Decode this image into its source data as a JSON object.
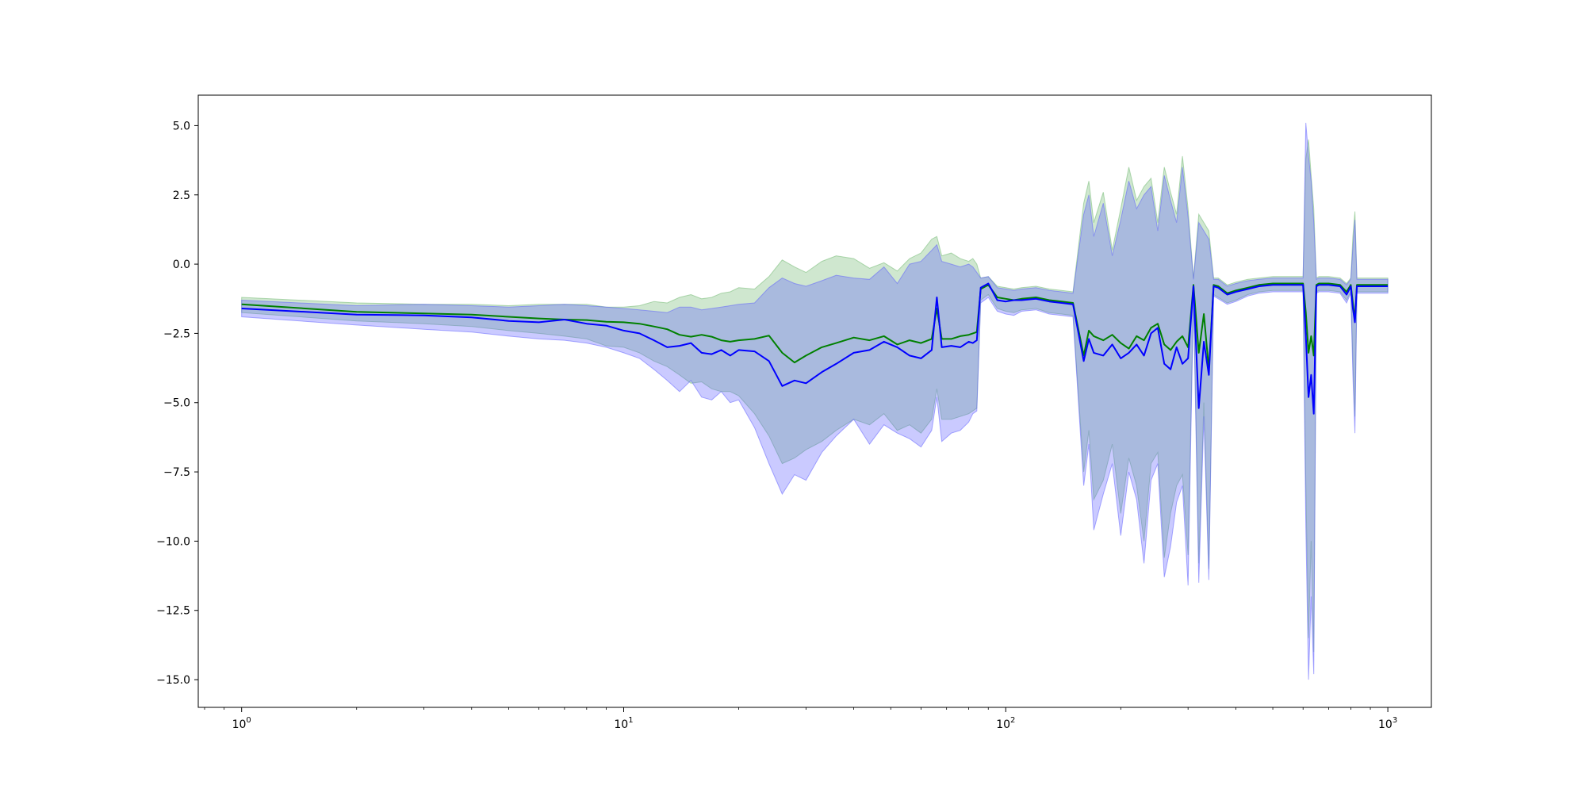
{
  "chart_data": {
    "type": "line",
    "title": "",
    "xlabel": "",
    "ylabel": "",
    "x_scale": "log",
    "xlim": [
      0.77,
      1300
    ],
    "ylim": [
      -16.0,
      6.1
    ],
    "grid": false,
    "legend": "none",
    "x_ticks": [
      {
        "base": "10",
        "exp": "0",
        "value": 1
      },
      {
        "base": "10",
        "exp": "1",
        "value": 10
      },
      {
        "base": "10",
        "exp": "2",
        "value": 100
      },
      {
        "base": "10",
        "exp": "3",
        "value": 1000
      }
    ],
    "y_ticks": [
      {
        "label": "5.0",
        "value": 5.0
      },
      {
        "label": "2.5",
        "value": 2.5
      },
      {
        "label": "0.0",
        "value": 0.0
      },
      {
        "label": "−2.5",
        "value": -2.5
      },
      {
        "label": "−5.0",
        "value": -5.0
      },
      {
        "label": "−7.5",
        "value": -7.5
      },
      {
        "label": "−10.0",
        "value": -10.0
      },
      {
        "label": "−12.5",
        "value": -12.5
      },
      {
        "label": "−15.0",
        "value": -15.0
      }
    ],
    "series": [
      {
        "color": "#008000",
        "band_color": "#6ab56a",
        "x": [
          1,
          2,
          3,
          4,
          5,
          6,
          7,
          8,
          9,
          10,
          11,
          12,
          13,
          14,
          15,
          16,
          17,
          18,
          19,
          20,
          22,
          24,
          26,
          28,
          30,
          33,
          36,
          40,
          44,
          48,
          52,
          56,
          60,
          64,
          66,
          68,
          72,
          76,
          80,
          82,
          84,
          86,
          90,
          95,
          100,
          105,
          110,
          120,
          130,
          140,
          150,
          160,
          165,
          170,
          180,
          190,
          200,
          210,
          220,
          230,
          240,
          250,
          260,
          270,
          280,
          290,
          300,
          310,
          320,
          330,
          340,
          350,
          360,
          380,
          400,
          430,
          460,
          500,
          550,
          600,
          610,
          620,
          630,
          640,
          650,
          660,
          700,
          750,
          780,
          800,
          810,
          820,
          830,
          900,
          1000
        ],
        "y": [
          -1.45,
          -1.72,
          -1.78,
          -1.82,
          -1.9,
          -1.96,
          -2.0,
          -2.02,
          -2.08,
          -2.1,
          -2.15,
          -2.25,
          -2.35,
          -2.55,
          -2.62,
          -2.55,
          -2.62,
          -2.75,
          -2.8,
          -2.75,
          -2.7,
          -2.58,
          -3.2,
          -3.55,
          -3.3,
          -3.0,
          -2.85,
          -2.65,
          -2.75,
          -2.6,
          -2.9,
          -2.75,
          -2.85,
          -2.7,
          -1.6,
          -2.7,
          -2.7,
          -2.6,
          -2.55,
          -2.5,
          -2.45,
          -0.9,
          -0.75,
          -1.2,
          -1.25,
          -1.3,
          -1.25,
          -1.2,
          -1.3,
          -1.35,
          -1.4,
          -3.3,
          -2.4,
          -2.6,
          -2.75,
          -2.55,
          -2.85,
          -3.05,
          -2.6,
          -2.75,
          -2.3,
          -2.15,
          -2.9,
          -3.1,
          -2.8,
          -2.6,
          -3.0,
          -0.75,
          -3.2,
          -1.8,
          -3.8,
          -0.75,
          -0.8,
          -1.05,
          -0.95,
          -0.85,
          -0.75,
          -0.7,
          -0.7,
          -0.7,
          -1.75,
          -3.2,
          -2.6,
          -3.3,
          -0.75,
          -0.7,
          -0.7,
          -0.75,
          -1.0,
          -0.75,
          -1.4,
          -2.0,
          -0.75,
          -0.75,
          -0.75
        ],
        "lower": [
          -1.75,
          -2.05,
          -2.15,
          -2.25,
          -2.4,
          -2.5,
          -2.6,
          -2.7,
          -2.95,
          -3.0,
          -3.2,
          -3.5,
          -3.7,
          -4.0,
          -4.3,
          -4.25,
          -4.5,
          -4.6,
          -4.6,
          -4.75,
          -5.4,
          -6.2,
          -7.2,
          -7.0,
          -6.7,
          -6.4,
          -6.0,
          -5.6,
          -5.8,
          -5.4,
          -6.0,
          -5.8,
          -6.1,
          -5.6,
          -4.5,
          -5.6,
          -5.6,
          -5.5,
          -5.4,
          -5.3,
          -5.2,
          -1.3,
          -1.1,
          -1.6,
          -1.7,
          -1.75,
          -1.65,
          -1.6,
          -1.75,
          -1.8,
          -1.85,
          -7.5,
          -6.0,
          -8.5,
          -7.8,
          -6.5,
          -9.0,
          -7.0,
          -8.0,
          -10.0,
          -7.2,
          -6.8,
          -10.6,
          -9.0,
          -8.0,
          -7.6,
          -10.5,
          -1.1,
          -10.8,
          -5.0,
          -11.0,
          -1.1,
          -1.2,
          -1.4,
          -1.3,
          -1.1,
          -1.0,
          -0.95,
          -0.95,
          -0.95,
          -8.0,
          -13.5,
          -10.0,
          -14.0,
          -1.0,
          -0.95,
          -0.95,
          -1.0,
          -1.3,
          -1.0,
          -3.5,
          -5.5,
          -1.0,
          -1.0,
          -1.0
        ],
        "upper": [
          -1.2,
          -1.4,
          -1.45,
          -1.45,
          -1.5,
          -1.45,
          -1.45,
          -1.45,
          -1.55,
          -1.55,
          -1.5,
          -1.35,
          -1.4,
          -1.2,
          -1.1,
          -1.25,
          -1.2,
          -1.05,
          -1.0,
          -0.85,
          -0.9,
          -0.45,
          0.15,
          -0.1,
          -0.3,
          0.1,
          0.3,
          0.2,
          -0.15,
          0.05,
          -0.25,
          0.2,
          0.4,
          0.9,
          1.0,
          0.3,
          0.4,
          0.2,
          0.1,
          0.2,
          0.0,
          -0.5,
          -0.45,
          -0.8,
          -0.85,
          -0.9,
          -0.85,
          -0.8,
          -0.9,
          -0.95,
          -1.0,
          2.2,
          3.0,
          1.5,
          2.6,
          0.5,
          2.0,
          3.5,
          2.3,
          2.8,
          3.1,
          1.5,
          3.5,
          2.6,
          1.8,
          3.9,
          2.0,
          -0.5,
          1.8,
          1.5,
          1.2,
          -0.5,
          -0.5,
          -0.75,
          -0.65,
          -0.55,
          -0.5,
          -0.45,
          -0.45,
          -0.45,
          3.8,
          4.5,
          3.2,
          2.0,
          -0.5,
          -0.45,
          -0.45,
          -0.5,
          -0.7,
          -0.5,
          1.0,
          1.9,
          -0.5,
          -0.5,
          -0.5
        ]
      },
      {
        "color": "#0000ff",
        "band_color": "#5a5aff",
        "x": [
          1,
          2,
          3,
          4,
          5,
          6,
          7,
          8,
          9,
          10,
          11,
          12,
          13,
          14,
          15,
          16,
          17,
          18,
          19,
          20,
          22,
          24,
          26,
          28,
          30,
          33,
          36,
          40,
          44,
          48,
          52,
          56,
          60,
          64,
          66,
          68,
          72,
          76,
          80,
          82,
          84,
          86,
          90,
          95,
          100,
          105,
          110,
          120,
          130,
          140,
          150,
          160,
          165,
          170,
          180,
          190,
          200,
          210,
          220,
          230,
          240,
          250,
          260,
          270,
          280,
          290,
          300,
          310,
          320,
          330,
          340,
          350,
          360,
          380,
          400,
          430,
          460,
          500,
          550,
          600,
          610,
          620,
          630,
          640,
          650,
          660,
          700,
          750,
          780,
          800,
          810,
          820,
          830,
          900,
          1000
        ],
        "y": [
          -1.6,
          -1.82,
          -1.85,
          -1.92,
          -2.05,
          -2.1,
          -2.0,
          -2.15,
          -2.22,
          -2.4,
          -2.5,
          -2.75,
          -3.0,
          -2.95,
          -2.85,
          -3.2,
          -3.25,
          -3.1,
          -3.3,
          -3.1,
          -3.15,
          -3.5,
          -4.4,
          -4.2,
          -4.3,
          -3.9,
          -3.6,
          -3.2,
          -3.1,
          -2.8,
          -3.0,
          -3.3,
          -3.4,
          -3.1,
          -1.2,
          -3.0,
          -2.95,
          -3.0,
          -2.8,
          -2.85,
          -2.75,
          -0.85,
          -0.7,
          -1.3,
          -1.35,
          -1.3,
          -1.3,
          -1.25,
          -1.35,
          -1.4,
          -1.45,
          -3.5,
          -2.7,
          -3.2,
          -3.3,
          -2.9,
          -3.4,
          -3.2,
          -2.9,
          -3.3,
          -2.5,
          -2.3,
          -3.6,
          -3.8,
          -3.0,
          -3.6,
          -3.4,
          -0.8,
          -5.2,
          -2.8,
          -4.0,
          -0.8,
          -0.85,
          -1.1,
          -1.0,
          -0.9,
          -0.8,
          -0.75,
          -0.75,
          -0.75,
          -2.6,
          -4.8,
          -4.0,
          -5.4,
          -0.8,
          -0.75,
          -0.75,
          -0.8,
          -1.1,
          -0.8,
          -1.6,
          -2.1,
          -0.8,
          -0.8,
          -0.8
        ],
        "lower": [
          -1.9,
          -2.2,
          -2.35,
          -2.45,
          -2.6,
          -2.7,
          -2.75,
          -2.85,
          -3.0,
          -3.2,
          -3.4,
          -3.8,
          -4.2,
          -4.6,
          -4.2,
          -4.8,
          -4.9,
          -4.6,
          -5.0,
          -4.9,
          -5.9,
          -7.2,
          -8.3,
          -7.6,
          -7.8,
          -6.8,
          -6.2,
          -5.6,
          -6.5,
          -5.8,
          -6.1,
          -6.3,
          -6.6,
          -6.0,
          -4.8,
          -6.4,
          -6.1,
          -6.0,
          -5.7,
          -5.4,
          -5.3,
          -1.4,
          -1.2,
          -1.7,
          -1.8,
          -1.85,
          -1.7,
          -1.65,
          -1.8,
          -1.85,
          -1.9,
          -8.0,
          -6.5,
          -9.6,
          -8.3,
          -7.2,
          -9.8,
          -7.5,
          -8.5,
          -10.8,
          -7.8,
          -7.2,
          -11.3,
          -10.2,
          -8.6,
          -8.0,
          -11.6,
          -1.15,
          -11.5,
          -5.5,
          -11.4,
          -1.15,
          -1.25,
          -1.45,
          -1.35,
          -1.15,
          -1.05,
          -1.0,
          -1.0,
          -1.0,
          -9.5,
          -15.0,
          -12.0,
          -14.8,
          -1.05,
          -1.0,
          -1.0,
          -1.05,
          -1.4,
          -1.05,
          -4.0,
          -6.1,
          -1.05,
          -1.05,
          -1.05
        ],
        "upper": [
          -1.3,
          -1.5,
          -1.45,
          -1.5,
          -1.55,
          -1.5,
          -1.45,
          -1.5,
          -1.55,
          -1.6,
          -1.65,
          -1.7,
          -1.75,
          -1.55,
          -1.55,
          -1.65,
          -1.6,
          -1.55,
          -1.5,
          -1.45,
          -1.4,
          -0.85,
          -0.5,
          -0.7,
          -0.8,
          -0.6,
          -0.4,
          -0.5,
          -0.55,
          -0.1,
          -0.7,
          0.0,
          0.1,
          0.5,
          0.7,
          0.1,
          0.0,
          -0.1,
          0.0,
          -0.1,
          -0.3,
          -0.5,
          -0.45,
          -0.85,
          -0.9,
          -0.95,
          -0.9,
          -0.85,
          -0.95,
          -1.0,
          -1.05,
          1.8,
          2.5,
          1.0,
          2.2,
          0.3,
          1.6,
          3.0,
          2.0,
          2.5,
          2.8,
          1.2,
          3.2,
          2.3,
          1.5,
          3.5,
          1.7,
          -0.55,
          1.5,
          1.2,
          0.9,
          -0.55,
          -0.55,
          -0.8,
          -0.7,
          -0.6,
          -0.55,
          -0.5,
          -0.5,
          -0.5,
          5.1,
          3.9,
          3.0,
          1.5,
          -0.55,
          -0.5,
          -0.5,
          -0.55,
          -0.75,
          -0.55,
          0.6,
          1.6,
          -0.55,
          -0.55,
          -0.55
        ]
      }
    ]
  }
}
